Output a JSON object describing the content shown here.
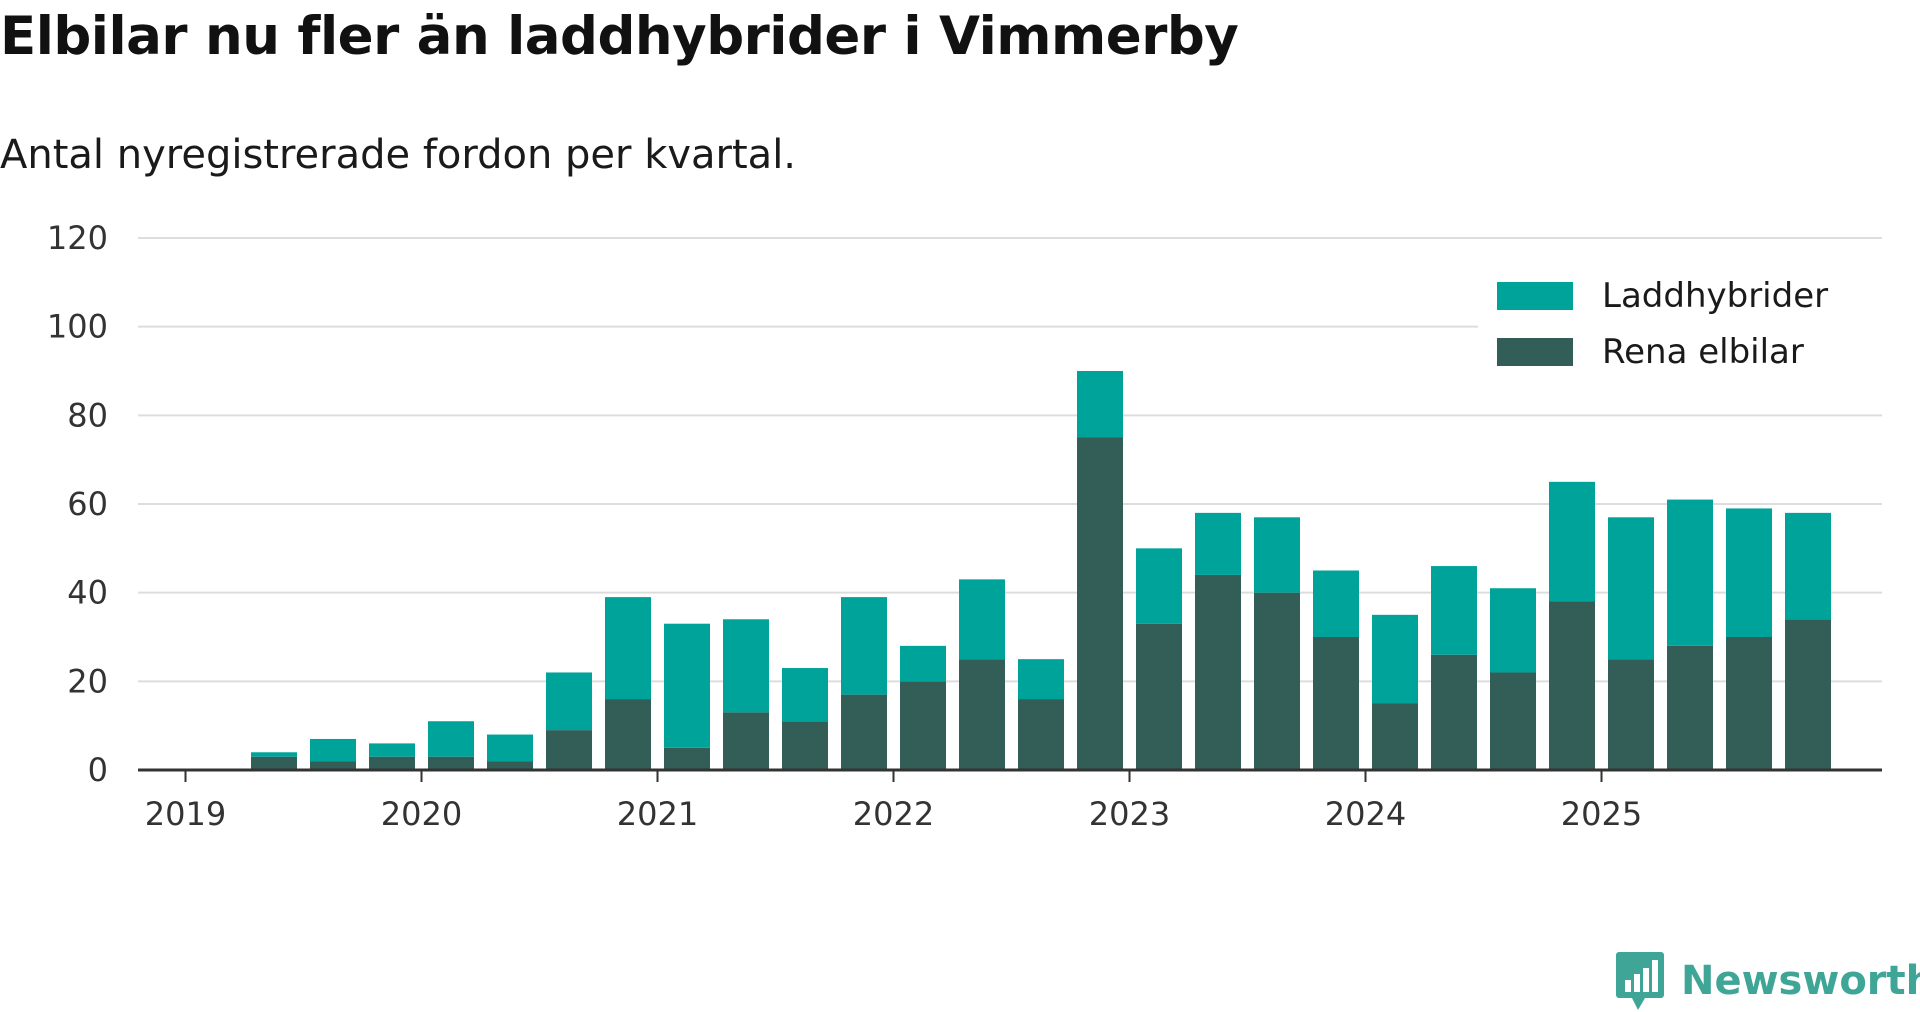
{
  "colors": {
    "phev": "#00a399",
    "bev": "#335e58",
    "grid": "#dddddd",
    "axis": "#333333",
    "brand": "#3fa597"
  },
  "brand": {
    "name": "Newsworthy",
    "icon": "bar-chart-speech-bubble-icon"
  },
  "chart_data": {
    "type": "bar",
    "stacked": true,
    "title": "Elbilar nu fler än laddhybrider i Vimmerby",
    "subtitle": "Antal nyregistrerade fordon per kvartal.",
    "xlabel": "",
    "ylabel": "",
    "ylim": [
      0,
      120
    ],
    "yticks": [
      0,
      20,
      40,
      60,
      80,
      100,
      120
    ],
    "xticks": [
      "2019",
      "2020",
      "2021",
      "2022",
      "2023",
      "2024",
      "2025"
    ],
    "grid": true,
    "legend_position": "top-right",
    "categories": [
      "2019 Q1",
      "2019 Q2",
      "2019 Q3",
      "2019 Q4",
      "2020 Q1",
      "2020 Q2",
      "2020 Q3",
      "2020 Q4",
      "2021 Q1",
      "2021 Q2",
      "2021 Q3",
      "2021 Q4",
      "2022 Q1",
      "2022 Q2",
      "2022 Q3",
      "2022 Q4",
      "2023 Q1",
      "2023 Q2",
      "2023 Q3",
      "2023 Q4",
      "2024 Q1",
      "2024 Q2",
      "2024 Q3",
      "2024 Q4",
      "2025 Q1",
      "2025 Q2",
      "2025 Q3",
      "2025 Q4"
    ],
    "series": [
      {
        "name": "Rena elbilar",
        "color": "#335e58",
        "values": [
          0,
          3,
          2,
          3,
          3,
          2,
          9,
          16,
          5,
          13,
          11,
          17,
          20,
          25,
          16,
          75,
          33,
          44,
          40,
          30,
          15,
          26,
          22,
          38,
          25,
          28,
          30,
          34
        ]
      },
      {
        "name": "Laddhybrider",
        "color": "#00a399",
        "values": [
          0,
          1,
          5,
          3,
          8,
          6,
          13,
          23,
          28,
          21,
          12,
          22,
          8,
          18,
          9,
          15,
          17,
          14,
          17,
          15,
          20,
          20,
          19,
          27,
          32,
          33,
          29,
          24
        ]
      }
    ],
    "legend": [
      "Laddhybrider",
      "Rena elbilar"
    ]
  }
}
